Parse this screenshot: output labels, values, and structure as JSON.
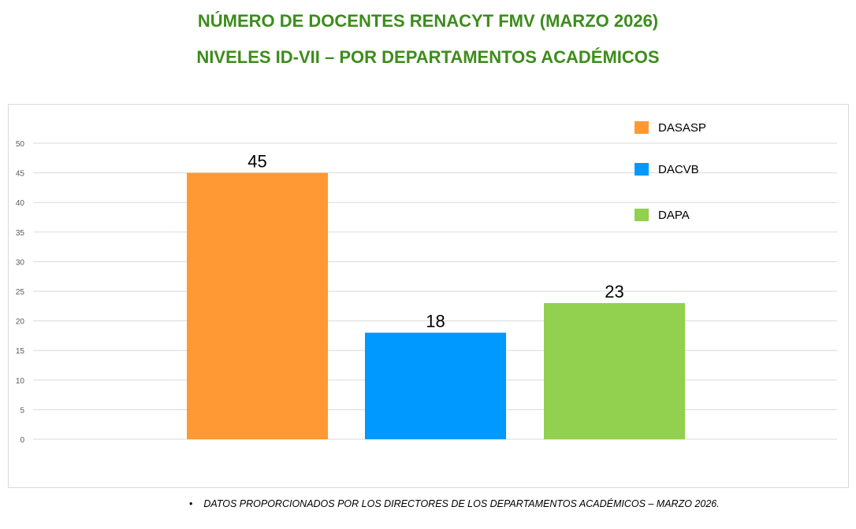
{
  "chart_data": {
    "type": "bar",
    "title": "NÚMERO DE DOCENTES RENACYT FMV (MARZO 2026)",
    "subtitle": "NIVELES ID-VII – POR DEPARTAMENTOS ACADÉMICOS",
    "categories": [
      "DASASP",
      "DACVB",
      "DAPA"
    ],
    "values": [
      45,
      18,
      23
    ],
    "colors": [
      "#ff9933",
      "#0099ff",
      "#92d050"
    ],
    "ylim": [
      0,
      50
    ],
    "yticks": [
      "0",
      "5",
      "10",
      "15",
      "20",
      "25",
      "30",
      "35",
      "40",
      "45",
      "50"
    ],
    "grid": true,
    "legend": "top-right",
    "xlabel": "",
    "ylabel": ""
  },
  "footnote": "DATOS PROPORCIONADOS POR LOS DIRECTORES DE LOS DEPARTAMENTOS ACADÉMICOS – MARZO 2026."
}
